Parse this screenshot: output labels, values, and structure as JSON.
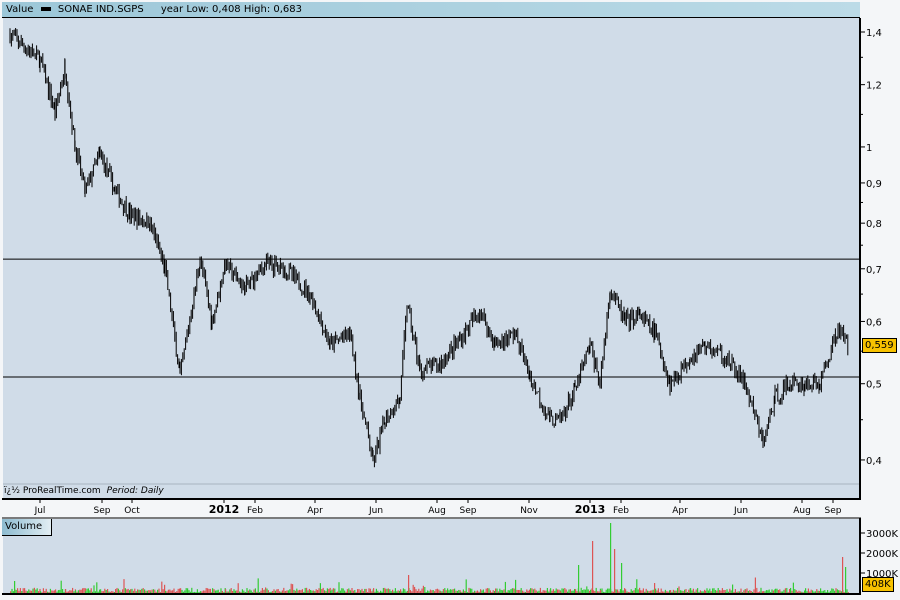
{
  "header": {
    "panel_label": "Value",
    "symbol": "SONAE IND.SGPS",
    "range_text": "year Low: 0,408 High: 0,683"
  },
  "footer": {
    "source": "ï¿½ ProRealTime.com",
    "period": "Period: Daily"
  },
  "volume_panel": {
    "label": "Volume",
    "last_value_label": "408K"
  },
  "colors": {
    "background": "#d0dce8",
    "up": "#33cc33",
    "down": "#dd5555",
    "tag": "#f7c200",
    "price": "#000000"
  },
  "chart_data": [
    {
      "type": "line",
      "title": "SONAE IND.SGPS",
      "y_scale": "log",
      "ylim": [
        0.37,
        1.45
      ],
      "y_ticks": [
        {
          "v": 1.4,
          "label": "1,4"
        },
        {
          "v": 1.2,
          "label": "1,2"
        },
        {
          "v": 1,
          "label": "1"
        },
        {
          "v": 0.9,
          "label": "0,9"
        },
        {
          "v": 0.8,
          "label": "0,8"
        },
        {
          "v": 0.7,
          "label": "0,7"
        },
        {
          "v": 0.6,
          "label": "0,6"
        },
        {
          "v": 0.5,
          "label": "0,5"
        },
        {
          "v": 0.4,
          "label": "0,4"
        }
      ],
      "x_ticks": [
        {
          "date": "2011-07-01",
          "label": "Jul"
        },
        {
          "date": "2011-09-01",
          "label": "Sep"
        },
        {
          "date": "2011-10-01",
          "label": "Oct"
        },
        {
          "date": "2012-01-01",
          "label": "2012",
          "bold": true
        },
        {
          "date": "2012-02-01",
          "label": "Feb"
        },
        {
          "date": "2012-04-01",
          "label": "Apr"
        },
        {
          "date": "2012-06-01",
          "label": "Jun"
        },
        {
          "date": "2012-08-01",
          "label": "Aug"
        },
        {
          "date": "2012-09-01",
          "label": "Sep"
        },
        {
          "date": "2012-11-01",
          "label": "Nov"
        },
        {
          "date": "2013-01-01",
          "label": "2013",
          "bold": true
        },
        {
          "date": "2013-02-01",
          "label": "Feb"
        },
        {
          "date": "2013-04-01",
          "label": "Apr"
        },
        {
          "date": "2013-06-01",
          "label": "Jun"
        },
        {
          "date": "2013-08-01",
          "label": "Aug"
        },
        {
          "date": "2013-09-01",
          "label": "Sep"
        }
      ],
      "horizontal_lines": [
        0.72,
        0.51
      ],
      "last_value": 0.559,
      "last_label": "0,559",
      "points": [
        [
          "2011-06-01",
          1.39
        ],
        [
          "2011-07-01",
          1.29
        ],
        [
          "2011-07-16",
          1.11
        ],
        [
          "2011-07-26",
          1.26
        ],
        [
          "2011-08-05",
          1.0
        ],
        [
          "2011-08-15",
          0.88
        ],
        [
          "2011-08-30",
          0.98
        ],
        [
          "2011-09-14",
          0.88
        ],
        [
          "2011-09-29",
          0.82
        ],
        [
          "2011-10-19",
          0.8
        ],
        [
          "2011-11-03",
          0.7
        ],
        [
          "2011-11-18",
          0.51
        ],
        [
          "2011-12-08",
          0.72
        ],
        [
          "2011-12-20",
          0.6
        ],
        [
          "2012-01-02",
          0.71
        ],
        [
          "2012-01-22",
          0.66
        ],
        [
          "2012-02-11",
          0.71
        ],
        [
          "2012-03-02",
          0.7
        ],
        [
          "2012-03-27",
          0.65
        ],
        [
          "2012-04-16",
          0.56
        ],
        [
          "2012-05-06",
          0.58
        ],
        [
          "2012-05-16",
          0.48
        ],
        [
          "2012-05-29",
          0.397
        ],
        [
          "2012-06-10",
          0.45
        ],
        [
          "2012-06-25",
          0.48
        ],
        [
          "2012-07-02",
          0.63
        ],
        [
          "2012-07-15",
          0.52
        ],
        [
          "2012-08-04",
          0.53
        ],
        [
          "2012-08-24",
          0.57
        ],
        [
          "2012-09-13",
          0.62
        ],
        [
          "2012-09-28",
          0.56
        ],
        [
          "2012-10-18",
          0.58
        ],
        [
          "2012-11-02",
          0.51
        ],
        [
          "2012-11-22",
          0.45
        ],
        [
          "2012-12-02",
          0.45
        ],
        [
          "2012-12-17",
          0.49
        ],
        [
          "2013-01-01",
          0.56
        ],
        [
          "2013-01-11",
          0.5
        ],
        [
          "2013-01-21",
          0.66
        ],
        [
          "2013-02-05",
          0.6
        ],
        [
          "2013-02-20",
          0.61
        ],
        [
          "2013-03-07",
          0.58
        ],
        [
          "2013-03-22",
          0.5
        ],
        [
          "2013-04-11",
          0.54
        ],
        [
          "2013-04-26",
          0.56
        ],
        [
          "2013-05-16",
          0.54
        ],
        [
          "2013-06-05",
          0.5
        ],
        [
          "2013-06-23",
          0.42
        ],
        [
          "2013-07-05",
          0.48
        ],
        [
          "2013-07-20",
          0.5
        ],
        [
          "2013-08-04",
          0.5
        ],
        [
          "2013-08-19",
          0.5
        ],
        [
          "2013-09-06",
          0.59
        ],
        [
          "2013-09-16",
          0.559
        ]
      ]
    },
    {
      "type": "bar",
      "title": "Volume",
      "ylim": [
        0,
        3600000
      ],
      "y_ticks": [
        {
          "v": 3000000,
          "label": "3000K"
        },
        {
          "v": 2000000,
          "label": "2000K"
        },
        {
          "v": 1000000,
          "label": "1000K"
        }
      ],
      "spikes": [
        [
          "2011-06-05",
          600000
        ],
        [
          "2012-07-03",
          900000
        ],
        [
          "2012-12-20",
          1400000
        ],
        [
          "2013-01-03",
          2600000
        ],
        [
          "2013-01-21",
          3500000
        ],
        [
          "2013-01-25",
          2200000
        ],
        [
          "2013-02-01",
          1500000
        ],
        [
          "2013-09-10",
          1800000
        ],
        [
          "2013-09-13",
          1300000
        ]
      ],
      "last_value": 408000
    }
  ]
}
